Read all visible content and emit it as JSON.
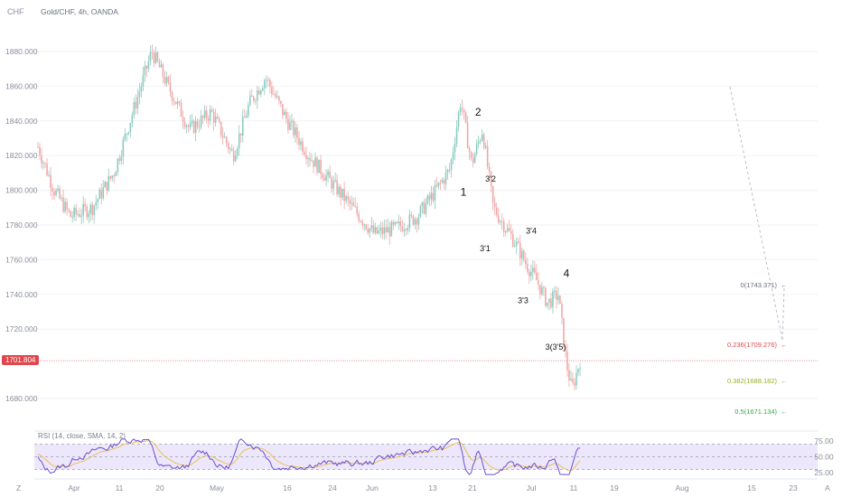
{
  "header": {
    "currency_label": "CHF",
    "title": "Gold/CHF, 4h, OANDA"
  },
  "last_price_label": "1701.804",
  "colors": {
    "up": "#8ccbc0",
    "down": "#f0a8a8",
    "last_price": "#e0474c",
    "fib_0": "#6b7080",
    "fib_236": "#e0474c",
    "fib_382": "#9aae2a",
    "fib_5": "#3aa84a",
    "rsi_line": "#6a4fd0",
    "rsi_ma": "#e8c25a",
    "rsi_band": "#ede7fb"
  },
  "chart_data": {
    "type": "candlestick",
    "title": "Gold/CHF, 4h, OANDA",
    "y_axis": {
      "label": "CHF",
      "ticks": [
        "1880.000",
        "1860.000",
        "1840.000",
        "1820.000",
        "1800.000",
        "1780.000",
        "1760.000",
        "1740.000",
        "1720.000",
        "1680.000"
      ],
      "range": [
        1660,
        1895
      ]
    },
    "x_axis": {
      "ticks": [
        "Apr",
        "11",
        "20",
        "May",
        "16",
        "24",
        "Jun",
        "13",
        "21",
        "Jul",
        "11",
        "19",
        "Aug",
        "15",
        "23"
      ]
    },
    "price_path_anchors": [
      {
        "t": 0.0,
        "p": 1825
      },
      {
        "t": 0.03,
        "p": 1800
      },
      {
        "t": 0.06,
        "p": 1785
      },
      {
        "t": 0.1,
        "p": 1790
      },
      {
        "t": 0.14,
        "p": 1810
      },
      {
        "t": 0.18,
        "p": 1850
      },
      {
        "t": 0.21,
        "p": 1880
      },
      {
        "t": 0.24,
        "p": 1860
      },
      {
        "t": 0.28,
        "p": 1835
      },
      {
        "t": 0.32,
        "p": 1845
      },
      {
        "t": 0.36,
        "p": 1820
      },
      {
        "t": 0.39,
        "p": 1850
      },
      {
        "t": 0.42,
        "p": 1865
      },
      {
        "t": 0.46,
        "p": 1840
      },
      {
        "t": 0.5,
        "p": 1820
      },
      {
        "t": 0.54,
        "p": 1805
      },
      {
        "t": 0.58,
        "p": 1790
      },
      {
        "t": 0.62,
        "p": 1775
      },
      {
        "t": 0.66,
        "p": 1778
      },
      {
        "t": 0.7,
        "p": 1785
      },
      {
        "t": 0.73,
        "p": 1798
      },
      {
        "t": 0.76,
        "p": 1812
      },
      {
        "t": 0.78,
        "p": 1852
      },
      {
        "t": 0.8,
        "p": 1815
      },
      {
        "t": 0.82,
        "p": 1835
      },
      {
        "t": 0.84,
        "p": 1790
      },
      {
        "t": 0.86,
        "p": 1780
      },
      {
        "t": 0.88,
        "p": 1770
      },
      {
        "t": 0.9,
        "p": 1758
      },
      {
        "t": 0.92,
        "p": 1748
      },
      {
        "t": 0.94,
        "p": 1735
      },
      {
        "t": 0.96,
        "p": 1740
      },
      {
        "t": 0.975,
        "p": 1700
      },
      {
        "t": 0.985,
        "p": 1685
      },
      {
        "t": 1.0,
        "p": 1702
      }
    ],
    "wave_labels": [
      {
        "text": "2",
        "t": 0.812,
        "p": 1843
      },
      {
        "text": "1",
        "t": 0.785,
        "p": 1797
      },
      {
        "text": "3'2",
        "t": 0.835,
        "p": 1805
      },
      {
        "text": "3'1",
        "t": 0.825,
        "p": 1765
      },
      {
        "text": "3'4",
        "t": 0.91,
        "p": 1775
      },
      {
        "text": "4",
        "t": 0.975,
        "p": 1750
      },
      {
        "text": "3'3",
        "t": 0.895,
        "p": 1735
      },
      {
        "text": "3(3'5)",
        "t": 0.955,
        "p": 1708
      }
    ],
    "fibonacci": [
      {
        "label": "0(1743.371)",
        "value": 1743.371
      },
      {
        "label": "0.236(1709.276)",
        "value": 1709.276
      },
      {
        "label": "0.382(1688.182)",
        "value": 1688.182
      },
      {
        "label": "0.5(1671.134)",
        "value": 1671.134
      }
    ],
    "last_price": 1701.804
  },
  "rsi": {
    "title": "RSI (14, close, SMA, 14, 2)",
    "ticks": [
      "75.00",
      "50.00",
      "25.00"
    ],
    "levels": [
      70,
      50,
      30
    ]
  }
}
